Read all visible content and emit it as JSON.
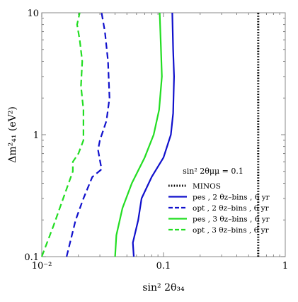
{
  "chart_data": {
    "type": "line",
    "xlabel": "sin² 2θ₃₄",
    "ylabel": "Δm²₄₁ (eV²)",
    "xscale": "log",
    "yscale": "log",
    "xlim": [
      0.01,
      1
    ],
    "ylim": [
      0.1,
      10
    ],
    "grid": false,
    "legend_placement": "lower-right",
    "legend_title": "sin² 2θμμ = 0.1",
    "x_ticks": [
      {
        "value": 0.01,
        "label": "10⁻²"
      },
      {
        "value": 0.1,
        "label": "0.1"
      },
      {
        "value": 1,
        "label": "1"
      }
    ],
    "y_ticks": [
      {
        "value": 0.1,
        "label": "0.1"
      },
      {
        "value": 1,
        "label": "1"
      },
      {
        "value": 10,
        "label": "10"
      }
    ],
    "series": [
      {
        "name": "MINOS",
        "color": "#000000",
        "style": "dotted",
        "points": [
          [
            0.6,
            0.1
          ],
          [
            0.6,
            10
          ]
        ]
      },
      {
        "name": "pes , 2 θz–bins , 6 yr",
        "color": "#1010cc",
        "style": "solid",
        "points": [
          [
            0.057,
            0.1
          ],
          [
            0.056,
            0.13
          ],
          [
            0.062,
            0.2
          ],
          [
            0.066,
            0.3
          ],
          [
            0.08,
            0.45
          ],
          [
            0.1,
            0.65
          ],
          [
            0.115,
            1
          ],
          [
            0.12,
            1.5
          ],
          [
            0.122,
            3
          ],
          [
            0.12,
            5
          ],
          [
            0.118,
            10
          ]
        ]
      },
      {
        "name": "opt , 2 θz–bins , 6 yr",
        "color": "#1010cc",
        "style": "dashed",
        "points": [
          [
            0.016,
            0.1
          ],
          [
            0.019,
            0.2
          ],
          [
            0.022,
            0.3
          ],
          [
            0.026,
            0.45
          ],
          [
            0.031,
            0.52
          ],
          [
            0.029,
            0.75
          ],
          [
            0.03,
            0.9
          ],
          [
            0.034,
            1.3
          ],
          [
            0.036,
            2
          ],
          [
            0.035,
            4
          ],
          [
            0.033,
            7
          ],
          [
            0.031,
            10
          ]
        ]
      },
      {
        "name": "pes , 3 θz–bins , 6 yr",
        "color": "#22dd22",
        "style": "solid",
        "points": [
          [
            0.04,
            0.1
          ],
          [
            0.041,
            0.15
          ],
          [
            0.046,
            0.25
          ],
          [
            0.055,
            0.4
          ],
          [
            0.07,
            0.65
          ],
          [
            0.083,
            1
          ],
          [
            0.092,
            1.6
          ],
          [
            0.097,
            3
          ],
          [
            0.095,
            5.5
          ],
          [
            0.093,
            10
          ]
        ]
      },
      {
        "name": "opt , 3 θz–bins , 6 yr",
        "color": "#22dd22",
        "style": "dashed",
        "points": [
          [
            0.01,
            0.1
          ],
          [
            0.0125,
            0.18
          ],
          [
            0.015,
            0.3
          ],
          [
            0.018,
            0.5
          ],
          [
            0.018,
            0.6
          ],
          [
            0.02,
            0.7
          ],
          [
            0.022,
            0.9
          ],
          [
            0.022,
            1.6
          ],
          [
            0.021,
            2.5
          ],
          [
            0.0215,
            4
          ],
          [
            0.0205,
            6
          ],
          [
            0.0195,
            8
          ],
          [
            0.0205,
            10
          ]
        ]
      }
    ]
  }
}
